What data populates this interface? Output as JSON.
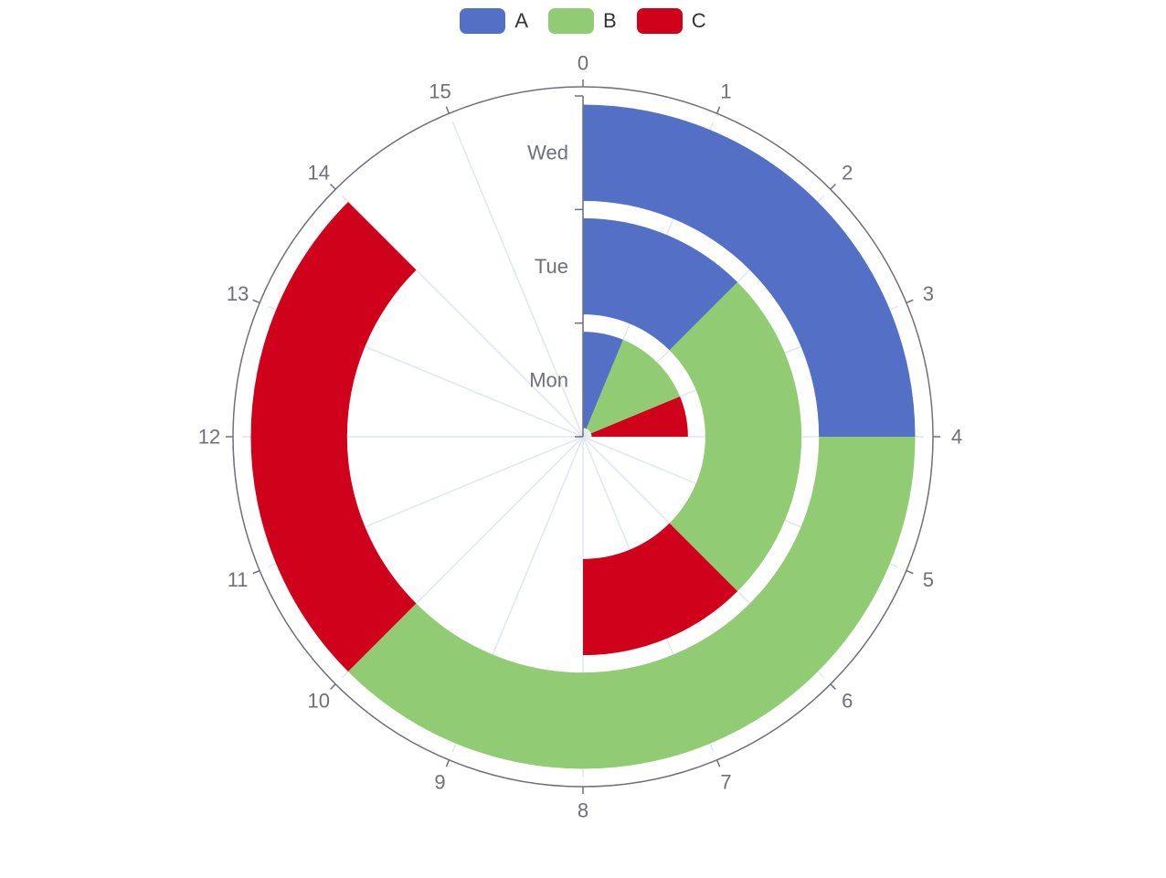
{
  "chart_data": {
    "type": "polar-stacked-bar",
    "angle_axis": {
      "min": 0,
      "max": 16,
      "ticks": [
        "0",
        "1",
        "2",
        "3",
        "4",
        "5",
        "6",
        "7",
        "8",
        "9",
        "10",
        "11",
        "12",
        "13",
        "14",
        "15"
      ]
    },
    "radius_axis": {
      "categories": [
        "Mon",
        "Tue",
        "Wed"
      ]
    },
    "categories": [
      "Mon",
      "Tue",
      "Wed"
    ],
    "series": [
      {
        "name": "A",
        "color": "#5470c6",
        "values": [
          1,
          2,
          4
        ]
      },
      {
        "name": "B",
        "color": "#91cc75",
        "values": [
          2,
          4,
          6
        ]
      },
      {
        "name": "C",
        "color": "#d0021b",
        "values": [
          1,
          2,
          4
        ]
      }
    ],
    "legend_position": "top-center",
    "grid": true
  },
  "legend": {
    "items": [
      {
        "label": "A",
        "color": "#5470c6"
      },
      {
        "label": "B",
        "color": "#91cc75"
      },
      {
        "label": "C",
        "color": "#d0021b"
      }
    ]
  }
}
